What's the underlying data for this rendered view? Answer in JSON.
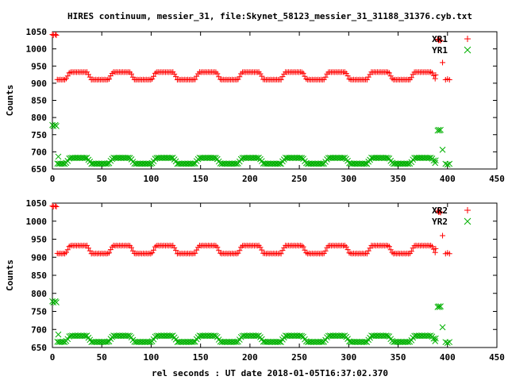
{
  "title": "HIRES continuum, messier_31, file:Skynet_58123_messier_31_31188_31376.cyb.txt",
  "xlabel": "rel seconds : UT date 2018-01-05T16:37:02.370",
  "chart_data": [
    {
      "type": "scatter",
      "ylabel": "Counts",
      "xlim": [
        0,
        450
      ],
      "ylim": [
        650,
        1050
      ],
      "xticks": [
        0,
        50,
        100,
        150,
        200,
        250,
        300,
        350,
        400,
        450
      ],
      "yticks": [
        650,
        700,
        750,
        800,
        850,
        900,
        950,
        1000,
        1050
      ],
      "legend_position": "top-right",
      "series": [
        {
          "name": "XR1",
          "color": "#ff0000",
          "marker": "plus",
          "pattern": {
            "x_start": 5,
            "x_end": 388,
            "step": 1.5,
            "base": 910,
            "high": 932,
            "period": 43.6,
            "phase": 13.5
          },
          "extra_points": [
            [
              0,
              1042
            ],
            [
              1,
              1040
            ],
            [
              3,
              1042
            ],
            [
              4,
              1040
            ],
            [
              388,
              924
            ],
            [
              390,
              1028
            ],
            [
              391,
              1025
            ],
            [
              392,
              1026
            ],
            [
              393,
              1024
            ],
            [
              395,
              960
            ],
            [
              398,
              910
            ],
            [
              400,
              912
            ],
            [
              402,
              910
            ]
          ]
        },
        {
          "name": "YR1",
          "color": "#00b000",
          "marker": "cross",
          "pattern": {
            "x_start": 5,
            "x_end": 388,
            "step": 1.5,
            "base": 665,
            "high": 682,
            "period": 43.6,
            "phase": 13.5
          },
          "extra_points": [
            [
              0,
              778
            ],
            [
              1,
              775
            ],
            [
              3,
              778
            ],
            [
              4,
              775
            ],
            [
              6,
              686
            ],
            [
              388,
              675
            ],
            [
              390,
              762
            ],
            [
              391,
              764
            ],
            [
              392,
              762
            ],
            [
              393,
              764
            ],
            [
              395,
              706
            ],
            [
              398,
              665
            ],
            [
              400,
              663
            ],
            [
              402,
              665
            ]
          ]
        }
      ]
    },
    {
      "type": "scatter",
      "ylabel": "Counts",
      "xlim": [
        0,
        450
      ],
      "ylim": [
        650,
        1050
      ],
      "xticks": [
        0,
        50,
        100,
        150,
        200,
        250,
        300,
        350,
        400,
        450
      ],
      "yticks": [
        650,
        700,
        750,
        800,
        850,
        900,
        950,
        1000,
        1050
      ],
      "legend_position": "top-right",
      "series": [
        {
          "name": "XR2",
          "color": "#ff0000",
          "marker": "plus",
          "pattern": {
            "x_start": 5,
            "x_end": 388,
            "step": 1.5,
            "base": 910,
            "high": 932,
            "period": 43.6,
            "phase": 13.5
          },
          "extra_points": [
            [
              0,
              1042
            ],
            [
              1,
              1040
            ],
            [
              3,
              1042
            ],
            [
              4,
              1040
            ],
            [
              388,
              924
            ],
            [
              390,
              1028
            ],
            [
              391,
              1025
            ],
            [
              392,
              1026
            ],
            [
              393,
              1024
            ],
            [
              395,
              960
            ],
            [
              398,
              910
            ],
            [
              400,
              912
            ],
            [
              402,
              910
            ]
          ]
        },
        {
          "name": "YR2",
          "color": "#00b000",
          "marker": "cross",
          "pattern": {
            "x_start": 5,
            "x_end": 388,
            "step": 1.5,
            "base": 665,
            "high": 682,
            "period": 43.6,
            "phase": 13.5
          },
          "extra_points": [
            [
              0,
              778
            ],
            [
              1,
              775
            ],
            [
              3,
              778
            ],
            [
              4,
              775
            ],
            [
              6,
              686
            ],
            [
              388,
              675
            ],
            [
              390,
              762
            ],
            [
              391,
              764
            ],
            [
              392,
              762
            ],
            [
              393,
              764
            ],
            [
              395,
              706
            ],
            [
              398,
              665
            ],
            [
              400,
              663
            ],
            [
              402,
              665
            ]
          ]
        }
      ]
    }
  ]
}
